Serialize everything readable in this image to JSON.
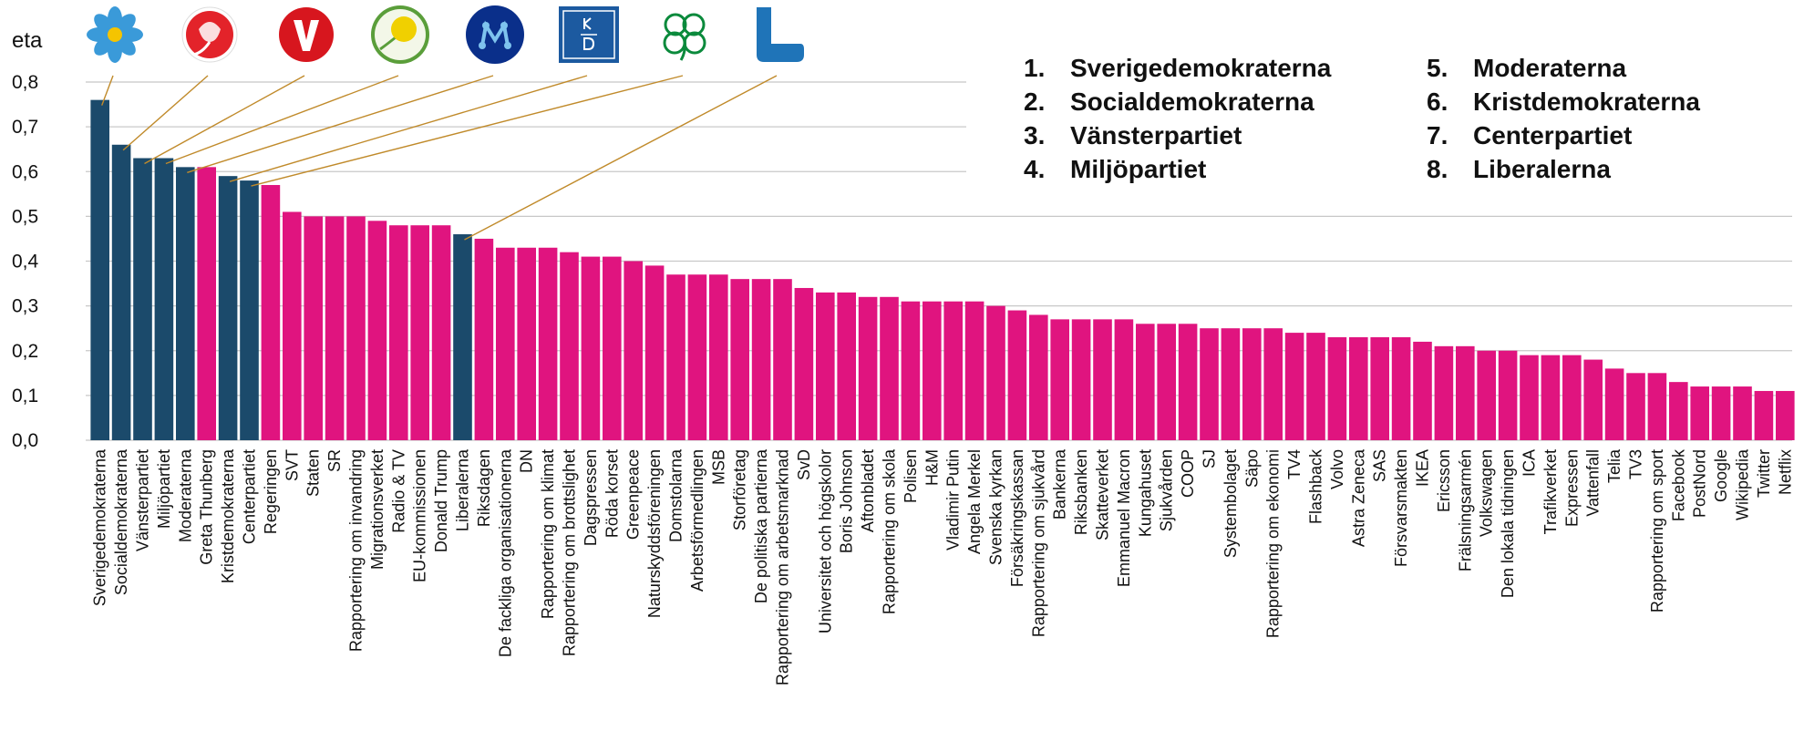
{
  "chart_data": {
    "type": "bar",
    "ylabel": "eta",
    "categories": [
      "Sverigedemokraterna",
      "Socialdemokraterna",
      "Vänsterpartiet",
      "Miljöpartiet",
      "Moderaterna",
      "Greta Thunberg",
      "Kristdemokraterna",
      "Centerpartiet",
      "Regeringen",
      "SVT",
      "Staten",
      "SR",
      "Rapportering om invandring",
      "Migrationsverket",
      "Radio & TV",
      "EU-kommissionen",
      "Donald Trump",
      "Liberalerna",
      "Riksdagen",
      "De fackliga organisationerna",
      "DN",
      "Rapportering om klimat",
      "Rapportering om brottslighet",
      "Dagspressen",
      "Röda korset",
      "Greenpeace",
      "Naturskyddsföreningen",
      "Domstolarna",
      "Arbetsförmedlingen",
      "MSB",
      "Storföretag",
      "De politiska partierna",
      "Rapportering om arbetsmarknad",
      "SvD",
      "Universitet och högskolor",
      "Boris Johnson",
      "Aftonbladet",
      "Rapportering om skola",
      "Polisen",
      "H&M",
      "Vladimir Putin",
      "Angela Merkel",
      "Svenska kyrkan",
      "Försäkringskassan",
      "Rapportering om sjukvård",
      "Bankerna",
      "Riksbanken",
      "Skatteverket",
      "Emmanuel Macron",
      "Kungahuset",
      "Sjukvården",
      "COOP",
      "SJ",
      "Systembolaget",
      "Säpo",
      "Rapportering om ekonomi",
      "TV4",
      "Flashback",
      "Volvo",
      "Astra Zeneca",
      "SAS",
      "Försvarsmakten",
      "IKEA",
      "Ericsson",
      "Frälsningsarmén",
      "Volkswagen",
      "Den lokala tidningen",
      "ICA",
      "Trafikverket",
      "Expressen",
      "Vattenfall",
      "Telia",
      "TV3",
      "Rapportering om sport",
      "Facebook",
      "PostNord",
      "Google",
      "Wikipedia",
      "Twitter",
      "Netflix"
    ],
    "values": [
      0.76,
      0.66,
      0.63,
      0.63,
      0.61,
      0.61,
      0.59,
      0.58,
      0.57,
      0.51,
      0.5,
      0.5,
      0.5,
      0.49,
      0.48,
      0.48,
      0.48,
      0.46,
      0.45,
      0.43,
      0.43,
      0.43,
      0.42,
      0.41,
      0.41,
      0.4,
      0.39,
      0.37,
      0.37,
      0.37,
      0.36,
      0.36,
      0.36,
      0.34,
      0.33,
      0.33,
      0.32,
      0.32,
      0.31,
      0.31,
      0.31,
      0.31,
      0.3,
      0.29,
      0.28,
      0.27,
      0.27,
      0.27,
      0.27,
      0.26,
      0.26,
      0.26,
      0.25,
      0.25,
      0.25,
      0.25,
      0.24,
      0.24,
      0.23,
      0.23,
      0.23,
      0.23,
      0.22,
      0.21,
      0.21,
      0.2,
      0.2,
      0.19,
      0.19,
      0.19,
      0.18,
      0.16,
      0.15,
      0.15,
      0.13,
      0.12,
      0.12,
      0.12,
      0.11,
      0.11
    ],
    "colors": [
      "#1b4a6b",
      "#1b4a6b",
      "#1b4a6b",
      "#1b4a6b",
      "#1b4a6b",
      "#e0147f",
      "#1b4a6b",
      "#1b4a6b",
      "#e0147f",
      "#e0147f",
      "#e0147f",
      "#e0147f",
      "#e0147f",
      "#e0147f",
      "#e0147f",
      "#e0147f",
      "#e0147f",
      "#1b4a6b",
      "#e0147f",
      "#e0147f",
      "#e0147f",
      "#e0147f",
      "#e0147f",
      "#e0147f",
      "#e0147f",
      "#e0147f",
      "#e0147f",
      "#e0147f",
      "#e0147f",
      "#e0147f",
      "#e0147f",
      "#e0147f",
      "#e0147f",
      "#e0147f",
      "#e0147f",
      "#e0147f",
      "#e0147f",
      "#e0147f",
      "#e0147f",
      "#e0147f",
      "#e0147f",
      "#e0147f",
      "#e0147f",
      "#e0147f",
      "#e0147f",
      "#e0147f",
      "#e0147f",
      "#e0147f",
      "#e0147f",
      "#e0147f",
      "#e0147f",
      "#e0147f",
      "#e0147f",
      "#e0147f",
      "#e0147f",
      "#e0147f",
      "#e0147f",
      "#e0147f",
      "#e0147f",
      "#e0147f",
      "#e0147f",
      "#e0147f",
      "#e0147f",
      "#e0147f",
      "#e0147f",
      "#e0147f",
      "#e0147f",
      "#e0147f",
      "#e0147f",
      "#e0147f",
      "#e0147f",
      "#e0147f",
      "#e0147f",
      "#e0147f",
      "#e0147f",
      "#e0147f",
      "#e0147f",
      "#e0147f",
      "#e0147f",
      "#e0147f"
    ],
    "ylim": [
      0,
      0.8
    ],
    "yticks": [
      {
        "value": 0,
        "label": "0,0"
      },
      {
        "value": 0.1,
        "label": "0,1"
      },
      {
        "value": 0.2,
        "label": "0,2"
      },
      {
        "value": 0.3,
        "label": "0,3"
      },
      {
        "value": 0.4,
        "label": "0,4"
      },
      {
        "value": 0.5,
        "label": "0,5"
      },
      {
        "value": 0.6,
        "label": "0,6"
      },
      {
        "value": 0.7,
        "label": "0,7"
      },
      {
        "value": 0.8,
        "label": "0,8"
      }
    ],
    "grid": true,
    "legend": [
      {
        "number": "1.",
        "name": "Sverigedemokraterna"
      },
      {
        "number": "2.",
        "name": "Socialdemokraterna"
      },
      {
        "number": "3.",
        "name": "Vänsterpartiet"
      },
      {
        "number": "4.",
        "name": "Miljöpartiet"
      },
      {
        "number": "5.",
        "name": "Moderaterna"
      },
      {
        "number": "6.",
        "name": "Kristdemokraterna"
      },
      {
        "number": "7.",
        "name": "Centerpartiet"
      },
      {
        "number": "8.",
        "name": "Liberalerna"
      }
    ],
    "legend_color": "#1d4a6b"
  }
}
